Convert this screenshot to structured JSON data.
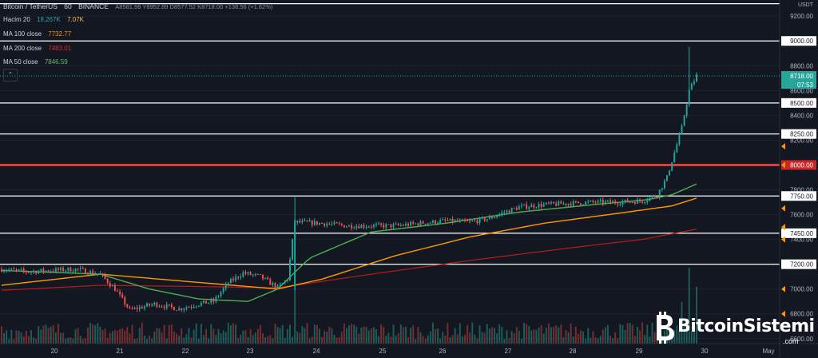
{
  "header": {
    "symbol": "Bitcoin / TetherUS",
    "interval": "60",
    "exchange": "BINANCE",
    "ohlc": "A8581.98 Y8952.89 D8577.52 K8718.00 +138.56 (+1.62%)",
    "volume_label": "Hacim 20",
    "volume_value1": "18.267K",
    "volume_value2": "7.07K",
    "ma100_label": "MA 100 close",
    "ma100_value": "7732.77",
    "ma200_label": "MA 200 close",
    "ma200_value": "7483.01",
    "ma50_label": "MA 50 close",
    "ma50_value": "7846.59",
    "collapse_glyph": "⌃"
  },
  "colors": {
    "background": "#131722",
    "up": "#26a69a",
    "down": "#ef5350",
    "ma50": "#4caf50",
    "ma100": "#ff9800",
    "ma200": "#b71c1c",
    "hline": "#ffffff",
    "hline_red": "#e53935",
    "text": "#d1d4dc",
    "axis_text": "#b2b5be"
  },
  "logo": {
    "icon": "bitcoin-b-icon",
    "text": "BitcoinSistemi",
    "suffix": ".com"
  },
  "chart_data": {
    "type": "candlestick",
    "currency": "USDT",
    "ylim": [
      6560,
      9330
    ],
    "y_ticks": [
      6600,
      6800,
      7000,
      7200,
      7400,
      7600,
      7800,
      8000,
      8200,
      8400,
      8600,
      8800,
      9000,
      9200
    ],
    "x_ticks": [
      "20",
      "21",
      "22",
      "23",
      "24",
      "25",
      "26",
      "27",
      "28",
      "29",
      "30",
      "May"
    ],
    "horizontal_levels": [
      {
        "value": 9300,
        "label": ""
      },
      {
        "value": 9000,
        "label": "9000.00"
      },
      {
        "value": 8500,
        "label": "8500.00"
      },
      {
        "value": 8250,
        "label": "8250.00"
      },
      {
        "value": 8000,
        "label": "8000.00",
        "highlight": true
      },
      {
        "value": 7750,
        "label": "7750.00"
      },
      {
        "value": 7450,
        "label": "7450.00"
      },
      {
        "value": 7200,
        "label": "7200.00"
      }
    ],
    "current_price": {
      "value": 8718,
      "label": "8718.00",
      "timer": "07:53"
    },
    "anchors": [
      [
        0,
        7160
      ],
      [
        10,
        7140
      ],
      [
        20,
        7150
      ],
      [
        30,
        7160
      ],
      [
        40,
        7120
      ],
      [
        46,
        7000
      ],
      [
        52,
        6830
      ],
      [
        62,
        6880
      ],
      [
        72,
        6840
      ],
      [
        80,
        6880
      ],
      [
        86,
        6900
      ],
      [
        92,
        7050
      ],
      [
        98,
        7130
      ],
      [
        105,
        7100
      ],
      [
        112,
        7010
      ],
      [
        116,
        7080
      ],
      [
        119,
        7540
      ],
      [
        130,
        7530
      ],
      [
        140,
        7510
      ],
      [
        150,
        7510
      ],
      [
        160,
        7510
      ],
      [
        170,
        7530
      ],
      [
        180,
        7550
      ],
      [
        190,
        7540
      ],
      [
        198,
        7570
      ],
      [
        204,
        7620
      ],
      [
        210,
        7660
      ],
      [
        220,
        7680
      ],
      [
        230,
        7690
      ],
      [
        240,
        7700
      ],
      [
        250,
        7700
      ],
      [
        260,
        7710
      ],
      [
        266,
        7760
      ],
      [
        270,
        7900
      ],
      [
        273,
        8100
      ],
      [
        276,
        8300
      ],
      [
        279,
        8600
      ],
      [
        282,
        8720
      ]
    ],
    "ma50": [
      [
        0,
        7150
      ],
      [
        40,
        7120
      ],
      [
        60,
        7000
      ],
      [
        80,
        6920
      ],
      [
        100,
        6900
      ],
      [
        112,
        7000
      ],
      [
        125,
        7250
      ],
      [
        150,
        7460
      ],
      [
        180,
        7530
      ],
      [
        210,
        7620
      ],
      [
        240,
        7680
      ],
      [
        262,
        7720
      ],
      [
        272,
        7760
      ],
      [
        282,
        7847
      ]
    ],
    "ma100": [
      [
        0,
        7030
      ],
      [
        40,
        7120
      ],
      [
        70,
        7070
      ],
      [
        100,
        7020
      ],
      [
        112,
        7000
      ],
      [
        130,
        7080
      ],
      [
        160,
        7270
      ],
      [
        190,
        7420
      ],
      [
        220,
        7530
      ],
      [
        250,
        7610
      ],
      [
        272,
        7670
      ],
      [
        282,
        7733
      ]
    ],
    "ma200": [
      [
        0,
        6990
      ],
      [
        40,
        7030
      ],
      [
        80,
        7020
      ],
      [
        112,
        7010
      ],
      [
        150,
        7120
      ],
      [
        190,
        7230
      ],
      [
        230,
        7330
      ],
      [
        260,
        7400
      ],
      [
        282,
        7483
      ]
    ],
    "volume_spikes": [
      [
        119,
        0.9
      ],
      [
        276,
        0.55
      ],
      [
        279,
        1.0
      ],
      [
        282,
        0.75
      ]
    ]
  }
}
